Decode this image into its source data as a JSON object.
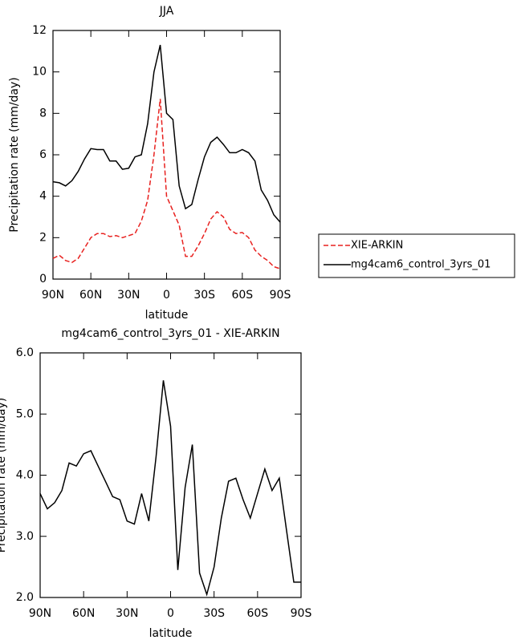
{
  "chart_data": [
    {
      "type": "line",
      "title": "JJA",
      "x_label": "latitude",
      "y_label": "Precipitation rate (mm/day)",
      "x": [
        90,
        85,
        80,
        75,
        70,
        65,
        60,
        55,
        50,
        45,
        40,
        35,
        30,
        25,
        20,
        15,
        10,
        5,
        0,
        -5,
        -10,
        -15,
        -20,
        -25,
        -30,
        -35,
        -40,
        -45,
        -50,
        -55,
        -60,
        -65,
        -70,
        -75,
        -80,
        -85,
        -90
      ],
      "series": [
        {
          "name": "XIE-ARKIN",
          "color": "#e8211f",
          "style": "dashed",
          "values": [
            1.0,
            1.15,
            0.9,
            0.8,
            1.0,
            1.5,
            2.0,
            2.2,
            2.2,
            2.05,
            2.1,
            2.0,
            2.1,
            2.2,
            2.8,
            3.8,
            6.0,
            8.7,
            4.0,
            3.3,
            2.6,
            1.1,
            1.1,
            1.6,
            2.2,
            2.9,
            3.25,
            3.0,
            2.4,
            2.2,
            2.25,
            2.0,
            1.4,
            1.1,
            0.9,
            0.6,
            0.5
          ]
        },
        {
          "name": "mg4cam6_control_3yrs_01",
          "color": "#000000",
          "style": "solid",
          "values": [
            4.7,
            4.65,
            4.5,
            4.75,
            5.2,
            5.8,
            6.3,
            6.25,
            6.25,
            5.7,
            5.7,
            5.3,
            5.35,
            5.9,
            6.0,
            7.5,
            10.0,
            11.3,
            8.0,
            7.7,
            4.5,
            3.4,
            3.6,
            4.8,
            5.9,
            6.6,
            6.85,
            6.5,
            6.1,
            6.1,
            6.25,
            6.1,
            5.7,
            4.3,
            3.8,
            3.1,
            2.75
          ]
        }
      ],
      "xlim": [
        90,
        -90
      ],
      "xticks": [
        {
          "value": 90,
          "label": "90N"
        },
        {
          "value": 60,
          "label": "60N"
        },
        {
          "value": 30,
          "label": "30N"
        },
        0,
        {
          "value": -30,
          "label": "30S"
        },
        {
          "value": -60,
          "label": "60S"
        },
        {
          "value": -90,
          "label": "90S"
        }
      ],
      "ylim": [
        0,
        12
      ],
      "yticks": [
        0,
        2,
        4,
        6,
        8,
        10,
        12
      ],
      "legend": "outside-right"
    },
    {
      "type": "line",
      "title": "mg4cam6_control_3yrs_01 - XIE-ARKIN",
      "x_label": "latitude",
      "y_label": "Precipitation rate (mm/day)",
      "x": [
        90,
        85,
        80,
        75,
        70,
        65,
        60,
        55,
        50,
        45,
        40,
        35,
        30,
        25,
        20,
        15,
        10,
        5,
        0,
        -5,
        -10,
        -15,
        -20,
        -25,
        -30,
        -35,
        -40,
        -45,
        -50,
        -55,
        -60,
        -65,
        -70,
        -75,
        -80,
        -85,
        -90
      ],
      "series": [
        {
          "color": "#000000",
          "style": "solid",
          "values": [
            3.7,
            3.45,
            3.55,
            3.75,
            4.2,
            4.15,
            4.35,
            4.4,
            4.15,
            3.9,
            3.65,
            3.6,
            3.25,
            3.2,
            3.7,
            3.25,
            4.3,
            5.55,
            4.8,
            2.45,
            3.8,
            4.5,
            2.4,
            2.05,
            2.5,
            3.3,
            3.9,
            3.95,
            3.6,
            3.3,
            3.7,
            4.1,
            3.75,
            3.95,
            3.1,
            2.25,
            2.25
          ]
        }
      ],
      "xlim": [
        90,
        -90
      ],
      "xticks": [
        {
          "value": 90,
          "label": "90N"
        },
        {
          "value": 60,
          "label": "60N"
        },
        {
          "value": 30,
          "label": "30N"
        },
        0,
        {
          "value": -30,
          "label": "30S"
        },
        {
          "value": -60,
          "label": "60S"
        },
        {
          "value": -90,
          "label": "90S"
        }
      ],
      "ylim": [
        2,
        6
      ],
      "yticks": [
        {
          "value": 2,
          "label": "2.0"
        },
        {
          "value": 3,
          "label": "3.0"
        },
        {
          "value": 4,
          "label": "4.0"
        },
        {
          "value": 5,
          "label": "5.0"
        },
        {
          "value": 6,
          "label": "6.0"
        }
      ]
    }
  ]
}
